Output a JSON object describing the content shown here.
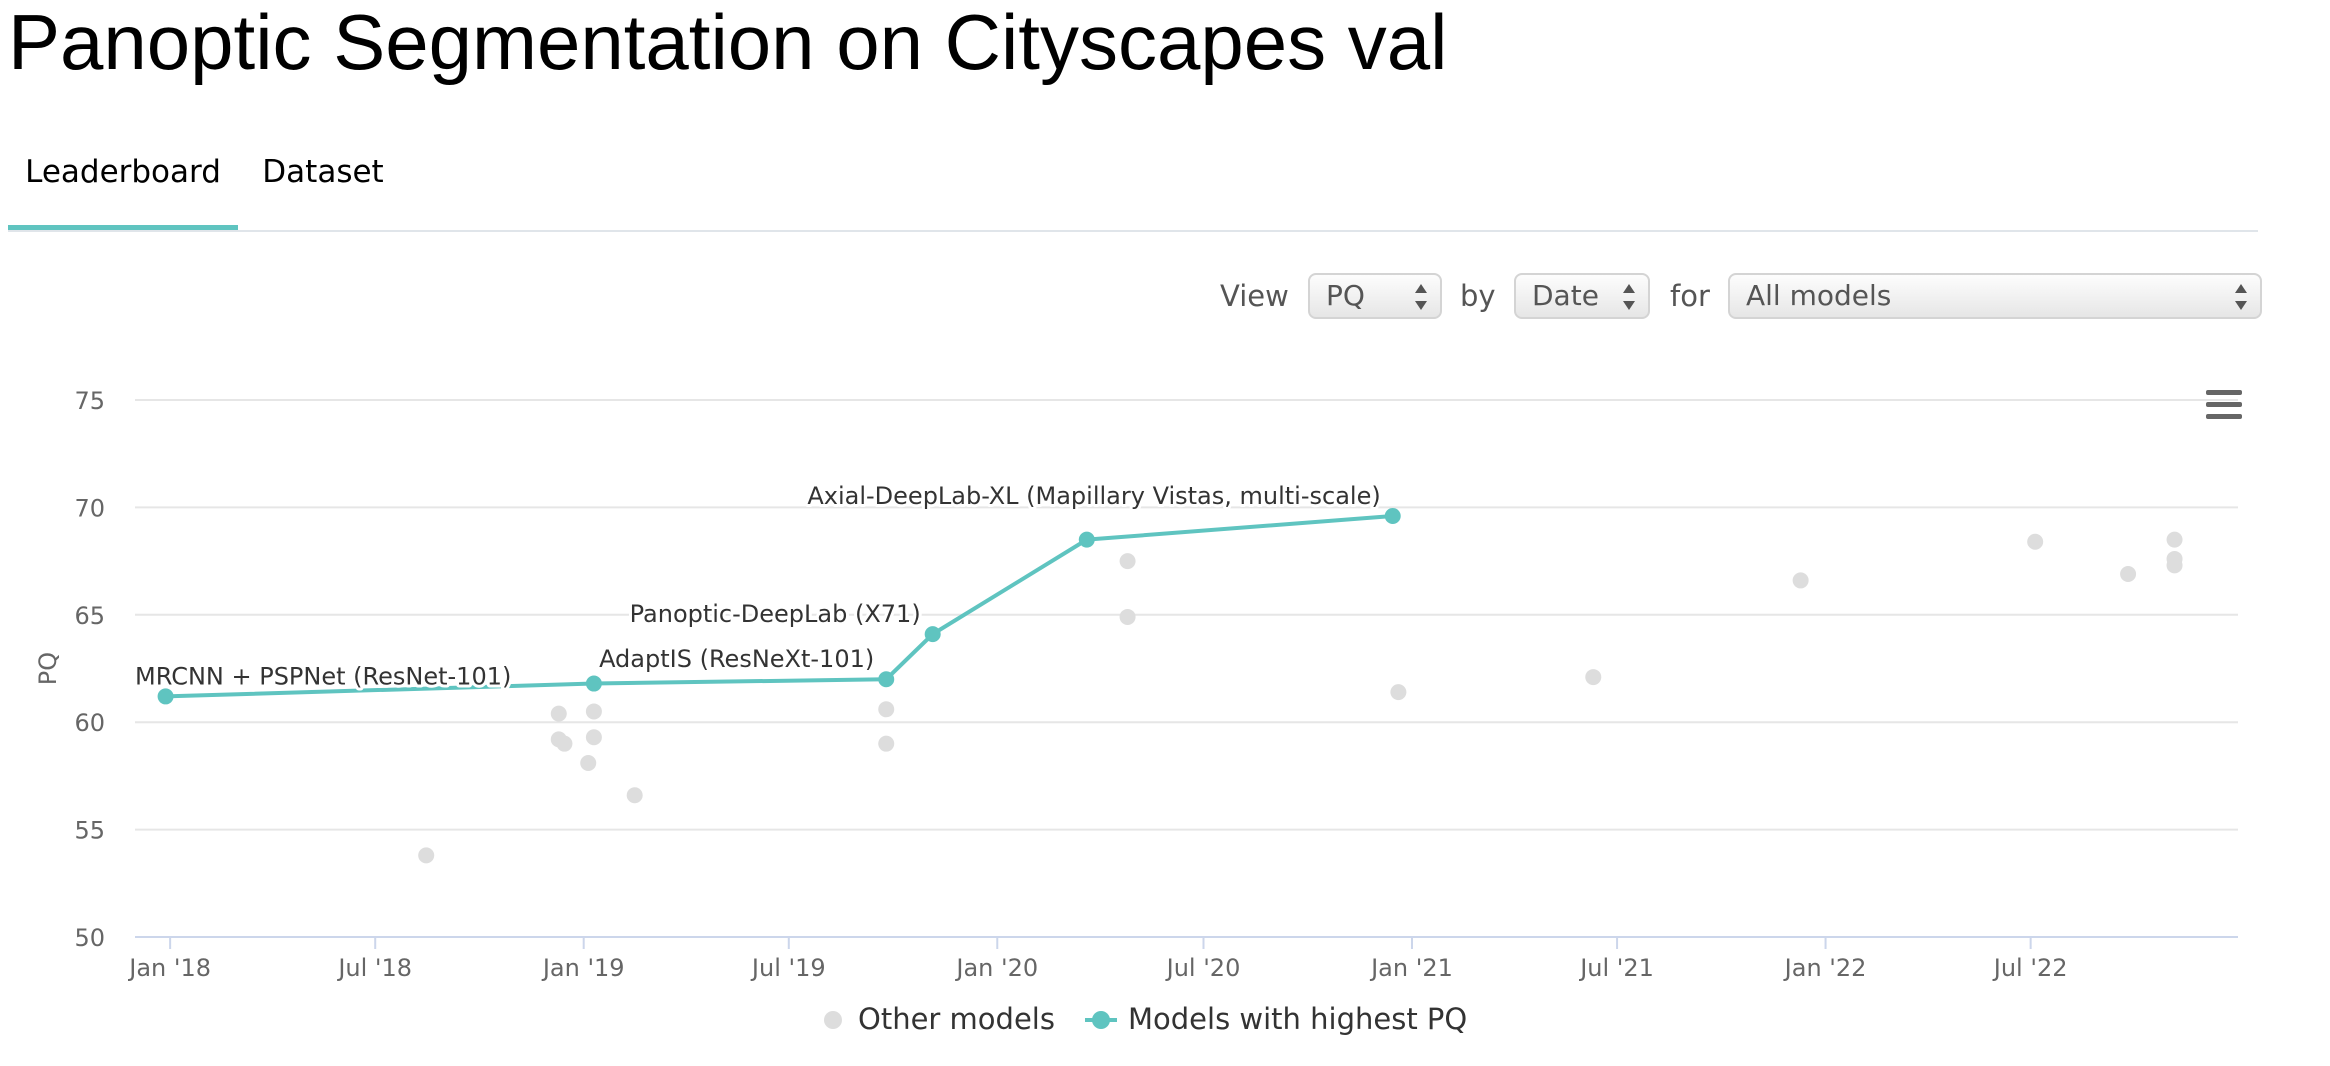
{
  "page": {
    "title": "Panoptic Segmentation on Cityscapes val"
  },
  "tabs": [
    {
      "label": "Leaderboard",
      "active": true
    },
    {
      "label": "Dataset",
      "active": false
    }
  ],
  "controls": {
    "view_label": "View",
    "view_value": "PQ",
    "by_label": "by",
    "by_value": "Date",
    "for_label": "for",
    "for_value": "All models"
  },
  "colors": {
    "accent": "#5fc4c0",
    "other_models": "#dddddd",
    "grid": "#e6e6e6",
    "axis": "#ccd6eb"
  },
  "chart_data": {
    "type": "scatter",
    "ylabel": "PQ",
    "xlabel": "",
    "ylim": [
      50,
      75
    ],
    "yticks": [
      50,
      55,
      60,
      65,
      70,
      75
    ],
    "xlim": [
      "2017-12-01",
      "2022-12-31"
    ],
    "xticks": [
      {
        "date": "2018-01-01",
        "label": "Jan '18"
      },
      {
        "date": "2018-07-01",
        "label": "Jul '18"
      },
      {
        "date": "2019-01-01",
        "label": "Jan '19"
      },
      {
        "date": "2019-07-01",
        "label": "Jul '19"
      },
      {
        "date": "2020-01-01",
        "label": "Jan '20"
      },
      {
        "date": "2020-07-01",
        "label": "Jul '20"
      },
      {
        "date": "2021-01-01",
        "label": "Jan '21"
      },
      {
        "date": "2021-07-01",
        "label": "Jul '21"
      },
      {
        "date": "2022-01-01",
        "label": "Jan '22"
      },
      {
        "date": "2022-07-01",
        "label": "Jul '22"
      }
    ],
    "grid": true,
    "legend_position": "bottom-center",
    "series": [
      {
        "name": "Other models",
        "points": [
          {
            "x": "2018-08-15",
            "y": 53.8
          },
          {
            "x": "2018-12-10",
            "y": 60.4
          },
          {
            "x": "2018-12-10",
            "y": 59.2
          },
          {
            "x": "2018-12-15",
            "y": 59.0
          },
          {
            "x": "2019-01-05",
            "y": 58.1
          },
          {
            "x": "2019-01-10",
            "y": 60.5
          },
          {
            "x": "2019-01-10",
            "y": 59.3
          },
          {
            "x": "2019-02-15",
            "y": 56.6
          },
          {
            "x": "2019-09-25",
            "y": 60.6
          },
          {
            "x": "2019-09-25",
            "y": 59.0
          },
          {
            "x": "2020-04-25",
            "y": 67.5
          },
          {
            "x": "2020-04-25",
            "y": 64.9
          },
          {
            "x": "2020-12-20",
            "y": 61.4
          },
          {
            "x": "2021-06-10",
            "y": 62.1
          },
          {
            "x": "2021-12-10",
            "y": 66.6
          },
          {
            "x": "2022-07-05",
            "y": 68.4
          },
          {
            "x": "2022-09-25",
            "y": 66.9
          },
          {
            "x": "2022-11-05",
            "y": 68.5
          },
          {
            "x": "2022-11-05",
            "y": 67.6
          },
          {
            "x": "2022-11-05",
            "y": 67.3
          }
        ]
      },
      {
        "name": "Models with highest PQ",
        "points": [
          {
            "x": "2017-12-28",
            "y": 61.2,
            "label": "MRCNN + PSPNet (ResNet-101)"
          },
          {
            "x": "2019-01-10",
            "y": 61.8
          },
          {
            "x": "2019-09-25",
            "y": 62.0,
            "label": "AdaptIS (ResNeXt-101)"
          },
          {
            "x": "2019-11-05",
            "y": 64.1,
            "label": "Panoptic-DeepLab (X71)"
          },
          {
            "x": "2020-03-20",
            "y": 68.5
          },
          {
            "x": "2020-12-15",
            "y": 69.6,
            "label": "Axial-DeepLab-XL (Mapillary Vistas, multi-scale)"
          }
        ]
      }
    ]
  }
}
